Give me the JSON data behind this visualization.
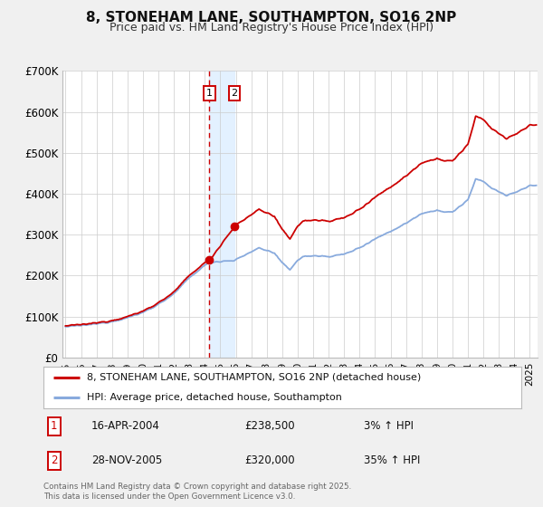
{
  "title": "8, STONEHAM LANE, SOUTHAMPTON, SO16 2NP",
  "subtitle": "Price paid vs. HM Land Registry's House Price Index (HPI)",
  "title_fontsize": 11,
  "subtitle_fontsize": 9,
  "ylim": [
    0,
    700000
  ],
  "yticks": [
    0,
    100000,
    200000,
    300000,
    400000,
    500000,
    600000,
    700000
  ],
  "ytick_labels": [
    "£0",
    "£100K",
    "£200K",
    "£300K",
    "£400K",
    "£500K",
    "£600K",
    "£700K"
  ],
  "xlim_start": 1994.8,
  "xlim_end": 2025.5,
  "xticks": [
    1995,
    1996,
    1997,
    1998,
    1999,
    2000,
    2001,
    2002,
    2003,
    2004,
    2005,
    2006,
    2007,
    2008,
    2009,
    2010,
    2011,
    2012,
    2013,
    2014,
    2015,
    2016,
    2017,
    2018,
    2019,
    2020,
    2021,
    2022,
    2023,
    2024,
    2025
  ],
  "sale1_x": 2004.292,
  "sale1_y": 238500,
  "sale2_x": 2005.91,
  "sale2_y": 320000,
  "hpi_line_color": "#88aadd",
  "price_line_color": "#cc0000",
  "sale_dot_color": "#cc0000",
  "shade_color": "#ddeeff",
  "dashed_line_color": "#cc0000",
  "background_color": "#f0f0f0",
  "plot_bg_color": "#ffffff",
  "grid_color": "#cccccc",
  "legend_label_red": "8, STONEHAM LANE, SOUTHAMPTON, SO16 2NP (detached house)",
  "legend_label_blue": "HPI: Average price, detached house, Southampton",
  "sale1_date": "16-APR-2004",
  "sale2_date": "28-NOV-2005",
  "sale1_price": "£238,500",
  "sale2_price": "£320,000",
  "sale1_hpi": "3% ↑ HPI",
  "sale2_hpi": "35% ↑ HPI",
  "footnote": "Contains HM Land Registry data © Crown copyright and database right 2025.\nThis data is licensed under the Open Government Licence v3.0."
}
